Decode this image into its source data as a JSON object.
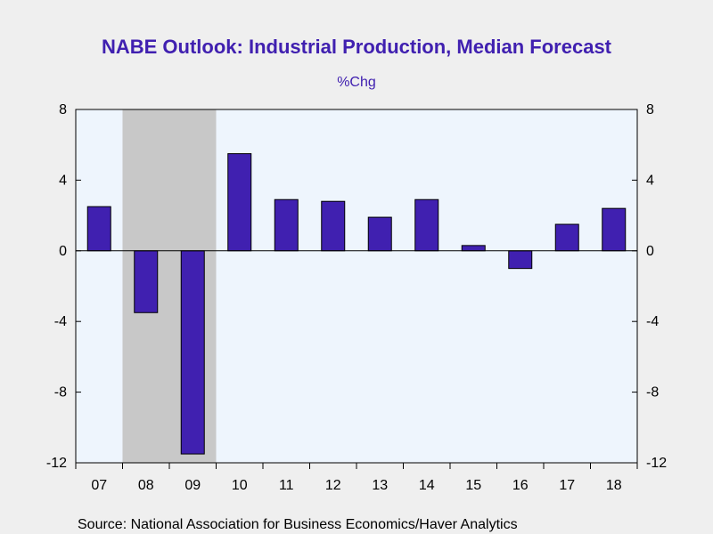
{
  "chart_data": {
    "type": "bar",
    "title": "NABE Outlook: Industrial Production, Median Forecast",
    "subtitle": "%Chg",
    "categories": [
      "07",
      "08",
      "09",
      "10",
      "11",
      "12",
      "13",
      "14",
      "15",
      "16",
      "17",
      "18"
    ],
    "series": [
      {
        "values": [
          2.5,
          -3.5,
          -11.5,
          5.5,
          2.9,
          2.8,
          1.9,
          2.9,
          0.3,
          -1.0,
          1.5,
          2.4
        ]
      }
    ],
    "ylim": [
      -12,
      8
    ],
    "yticks": [
      8,
      4,
      0,
      -4,
      -8,
      -12
    ],
    "ytick_labels": [
      "8",
      "4",
      "0",
      "-4",
      "-8",
      "-12"
    ],
    "right_axis_mirrored": true,
    "recession_shading": {
      "from_category": "08",
      "to_category": "09"
    },
    "grid": false,
    "legend": "none",
    "source": "Source:  National Association for Business Economics/Haver Analytics",
    "colors": {
      "bar": "#4020b0",
      "title": "#4020b0",
      "plot_background": "#eef5fd",
      "page_background": "#efefef",
      "recession": "#c8c8c8",
      "axis": "#000000"
    }
  }
}
